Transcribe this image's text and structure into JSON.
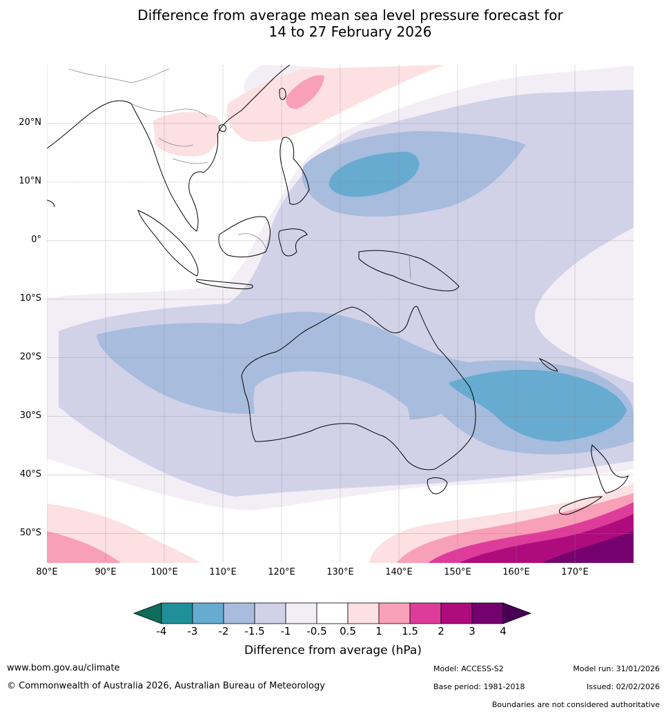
{
  "title": {
    "line1": "Difference from average mean sea level pressure forecast for",
    "line2": "14 to 27 February 2026"
  },
  "map": {
    "lat_labels": [
      "20°N",
      "10°N",
      "0°",
      "10°S",
      "20°S",
      "30°S",
      "40°S",
      "50°S"
    ],
    "lon_labels": [
      "80°E",
      "90°E",
      "100°E",
      "110°E",
      "120°E",
      "130°E",
      "140°E",
      "150°E",
      "160°E",
      "170°E"
    ],
    "extent": {
      "lon_min": 80,
      "lon_max": 180,
      "lat_min": -55,
      "lat_max": 30
    }
  },
  "colorbar": {
    "title": "Difference from average (hPa)",
    "tick_labels": [
      "-4",
      "-3",
      "-2",
      "-1.5",
      "-1",
      "-0.5",
      "0.5",
      "1",
      "1.5",
      "2",
      "3",
      "4"
    ],
    "colors": [
      "#0f6b5c",
      "#1f9098",
      "#67abd1",
      "#a8bcdd",
      "#d1d2e8",
      "#f3eef6",
      "#ffffff",
      "#fde0e1",
      "#f8a0b8",
      "#de3c9a",
      "#ae0b7d",
      "#75016f",
      "#480055"
    ]
  },
  "footer": {
    "website": "www.bom.gov.au/climate",
    "copyright": "© Commonwealth of Australia 2026, Australian Bureau of Meteorology",
    "model": "Model: ACCESS-S2",
    "base_period": "Base period: 1981-2018",
    "model_run": "Model run: 31/01/2026",
    "issued": "Issued: 02/02/2026",
    "disclaimer": "Boundaries are not considered authoritative"
  }
}
